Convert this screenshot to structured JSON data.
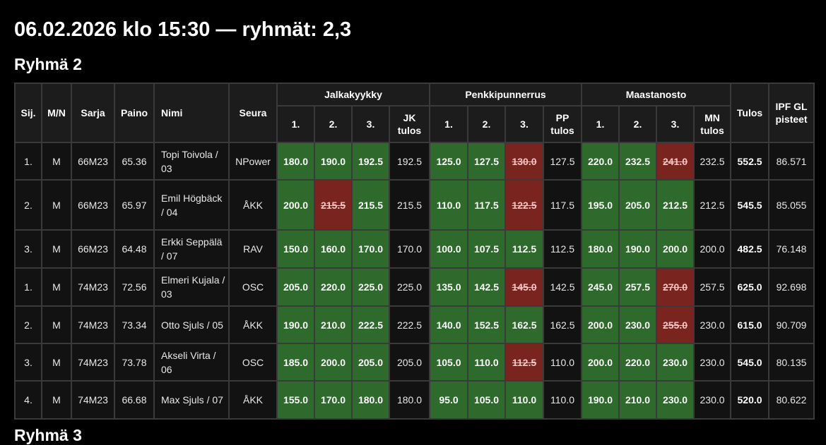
{
  "title": "06.02.2026 klo 15:30 — ryhmät: 2,3",
  "group_title": "Ryhmä 2",
  "next_group_title": "Ryhmä 3",
  "colors": {
    "good_lift": "#2e6a2c",
    "no_lift": "#7a2420",
    "cell_bg": "#121212"
  },
  "headers": {
    "rank": "Sij.",
    "sex": "M/N",
    "class": "Sarja",
    "weight": "Paino",
    "name": "Nimi",
    "club": "Seura",
    "squat": "Jalkakyykky",
    "bench": "Penkkipunnerrus",
    "deadlift": "Maastanosto",
    "att1": "1.",
    "att2": "2.",
    "att3": "3.",
    "squat_result": "JK tulos",
    "bench_result": "PP tulos",
    "deadlift_result": "MN tulos",
    "total": "Tulos",
    "points": "IPF GL pisteet"
  },
  "rows": [
    {
      "rank": "1.",
      "sex": "M",
      "class": "66M23",
      "weight": "65.36",
      "name": "Topi Toivola / 03",
      "club": "NPower",
      "squat": [
        {
          "v": "180.0",
          "ok": true
        },
        {
          "v": "190.0",
          "ok": true
        },
        {
          "v": "192.5",
          "ok": true
        }
      ],
      "squat_result": "192.5",
      "bench": [
        {
          "v": "125.0",
          "ok": true
        },
        {
          "v": "127.5",
          "ok": true
        },
        {
          "v": "130.0",
          "ok": false
        }
      ],
      "bench_result": "127.5",
      "deadlift": [
        {
          "v": "220.0",
          "ok": true
        },
        {
          "v": "232.5",
          "ok": true
        },
        {
          "v": "241.0",
          "ok": false
        }
      ],
      "deadlift_result": "232.5",
      "total": "552.5",
      "points": "86.571"
    },
    {
      "rank": "2.",
      "sex": "M",
      "class": "66M23",
      "weight": "65.97",
      "name": "Emil Högbäck / 04",
      "club": "ÅKK",
      "squat": [
        {
          "v": "200.0",
          "ok": true
        },
        {
          "v": "215.5",
          "ok": false
        },
        {
          "v": "215.5",
          "ok": true
        }
      ],
      "squat_result": "215.5",
      "bench": [
        {
          "v": "110.0",
          "ok": true
        },
        {
          "v": "117.5",
          "ok": true
        },
        {
          "v": "122.5",
          "ok": false
        }
      ],
      "bench_result": "117.5",
      "deadlift": [
        {
          "v": "195.0",
          "ok": true
        },
        {
          "v": "205.0",
          "ok": true
        },
        {
          "v": "212.5",
          "ok": true
        }
      ],
      "deadlift_result": "212.5",
      "total": "545.5",
      "points": "85.055"
    },
    {
      "rank": "3.",
      "sex": "M",
      "class": "66M23",
      "weight": "64.48",
      "name": "Erkki Seppälä / 07",
      "club": "RAV",
      "squat": [
        {
          "v": "150.0",
          "ok": true
        },
        {
          "v": "160.0",
          "ok": true
        },
        {
          "v": "170.0",
          "ok": true
        }
      ],
      "squat_result": "170.0",
      "bench": [
        {
          "v": "100.0",
          "ok": true
        },
        {
          "v": "107.5",
          "ok": true
        },
        {
          "v": "112.5",
          "ok": true
        }
      ],
      "bench_result": "112.5",
      "deadlift": [
        {
          "v": "180.0",
          "ok": true
        },
        {
          "v": "190.0",
          "ok": true
        },
        {
          "v": "200.0",
          "ok": true
        }
      ],
      "deadlift_result": "200.0",
      "total": "482.5",
      "points": "76.148"
    },
    {
      "rank": "1.",
      "sex": "M",
      "class": "74M23",
      "weight": "72.56",
      "name": "Elmeri Kujala / 03",
      "club": "OSC",
      "squat": [
        {
          "v": "205.0",
          "ok": true
        },
        {
          "v": "220.0",
          "ok": true
        },
        {
          "v": "225.0",
          "ok": true
        }
      ],
      "squat_result": "225.0",
      "bench": [
        {
          "v": "135.0",
          "ok": true
        },
        {
          "v": "142.5",
          "ok": true
        },
        {
          "v": "145.0",
          "ok": false
        }
      ],
      "bench_result": "142.5",
      "deadlift": [
        {
          "v": "245.0",
          "ok": true
        },
        {
          "v": "257.5",
          "ok": true
        },
        {
          "v": "270.0",
          "ok": false
        }
      ],
      "deadlift_result": "257.5",
      "total": "625.0",
      "points": "92.698"
    },
    {
      "rank": "2.",
      "sex": "M",
      "class": "74M23",
      "weight": "73.34",
      "name": "Otto Sjuls / 05",
      "club": "ÅKK",
      "squat": [
        {
          "v": "190.0",
          "ok": true
        },
        {
          "v": "210.0",
          "ok": true
        },
        {
          "v": "222.5",
          "ok": true
        }
      ],
      "squat_result": "222.5",
      "bench": [
        {
          "v": "140.0",
          "ok": true
        },
        {
          "v": "152.5",
          "ok": true
        },
        {
          "v": "162.5",
          "ok": true
        }
      ],
      "bench_result": "162.5",
      "deadlift": [
        {
          "v": "200.0",
          "ok": true
        },
        {
          "v": "230.0",
          "ok": true
        },
        {
          "v": "255.0",
          "ok": false
        }
      ],
      "deadlift_result": "230.0",
      "total": "615.0",
      "points": "90.709"
    },
    {
      "rank": "3.",
      "sex": "M",
      "class": "74M23",
      "weight": "73.78",
      "name": "Akseli Virta / 06",
      "club": "OSC",
      "squat": [
        {
          "v": "185.0",
          "ok": true
        },
        {
          "v": "200.0",
          "ok": true
        },
        {
          "v": "205.0",
          "ok": true
        }
      ],
      "squat_result": "205.0",
      "bench": [
        {
          "v": "105.0",
          "ok": true
        },
        {
          "v": "110.0",
          "ok": true
        },
        {
          "v": "112.5",
          "ok": false
        }
      ],
      "bench_result": "110.0",
      "deadlift": [
        {
          "v": "200.0",
          "ok": true
        },
        {
          "v": "220.0",
          "ok": true
        },
        {
          "v": "230.0",
          "ok": true
        }
      ],
      "deadlift_result": "230.0",
      "total": "545.0",
      "points": "80.135"
    },
    {
      "rank": "4.",
      "sex": "M",
      "class": "74M23",
      "weight": "66.68",
      "name": "Max Sjuls / 07",
      "club": "ÅKK",
      "squat": [
        {
          "v": "155.0",
          "ok": true
        },
        {
          "v": "170.0",
          "ok": true
        },
        {
          "v": "180.0",
          "ok": true
        }
      ],
      "squat_result": "180.0",
      "bench": [
        {
          "v": "95.0",
          "ok": true
        },
        {
          "v": "105.0",
          "ok": true
        },
        {
          "v": "110.0",
          "ok": true
        }
      ],
      "bench_result": "110.0",
      "deadlift": [
        {
          "v": "190.0",
          "ok": true
        },
        {
          "v": "210.0",
          "ok": true
        },
        {
          "v": "230.0",
          "ok": true
        }
      ],
      "deadlift_result": "230.0",
      "total": "520.0",
      "points": "80.622"
    }
  ]
}
